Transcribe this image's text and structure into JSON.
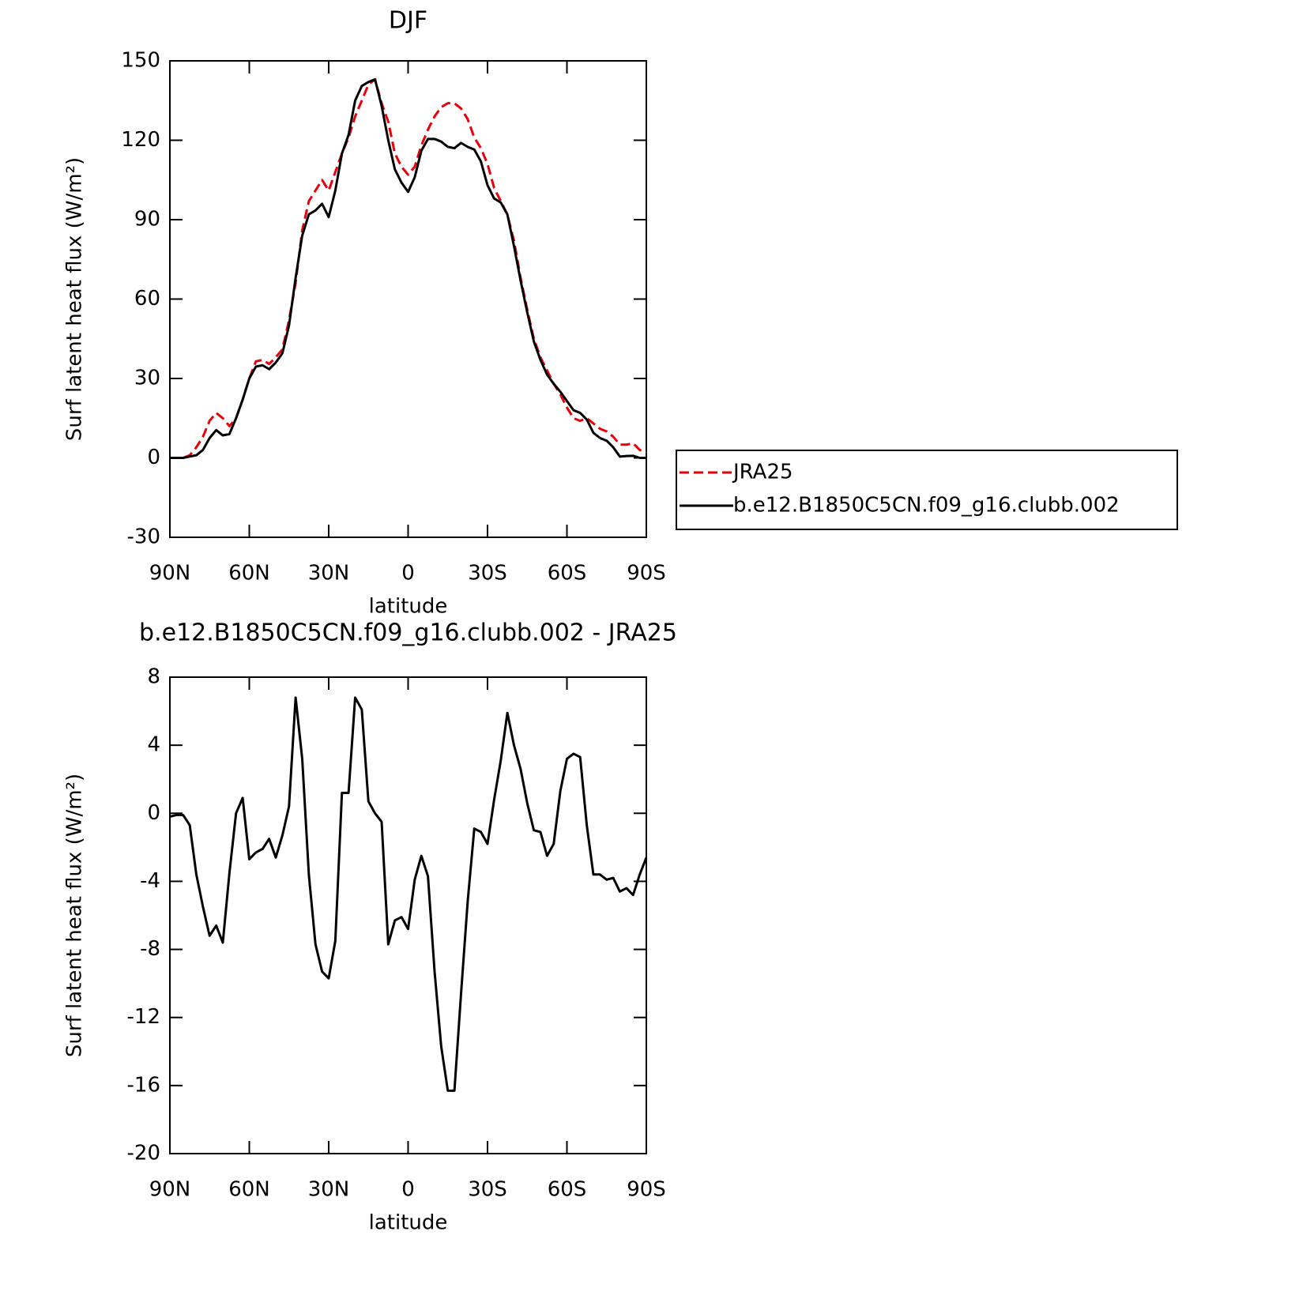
{
  "chart_data": [
    {
      "type": "line",
      "title": "DJF",
      "xlabel": "latitude",
      "ylabel": "Surf latent heat flux (W/m²)",
      "x": [
        90,
        87.5,
        85,
        82.5,
        80,
        77.5,
        75,
        72.5,
        70,
        67.5,
        65,
        62.5,
        60,
        57.5,
        55,
        52.5,
        50,
        47.5,
        45,
        42.5,
        40,
        37.5,
        35,
        32.5,
        30,
        27.5,
        25,
        22.5,
        20,
        17.5,
        15,
        12.5,
        10,
        7.5,
        5,
        2.5,
        0,
        -2.5,
        -5,
        -7.5,
        -10,
        -12.5,
        -15,
        -17.5,
        -20,
        -22.5,
        -25,
        -27.5,
        -30,
        -32.5,
        -35,
        -37.5,
        -40,
        -42.5,
        -45,
        -47.5,
        -50,
        -52.5,
        -55,
        -57.5,
        -60,
        -62.5,
        -65,
        -67.5,
        -70,
        -72.5,
        -75,
        -77.5,
        -80,
        -82.5,
        -85,
        -87.5,
        -90
      ],
      "series": [
        {
          "name": "JRA25",
          "color": "#e8000b",
          "dashed": true,
          "values": [
            0,
            0,
            0,
            1,
            4,
            8,
            14,
            17,
            15,
            12,
            15,
            22,
            30,
            36.5,
            37,
            35.5,
            38,
            41,
            52,
            66,
            86,
            97,
            101,
            105,
            101,
            108,
            115,
            121,
            129,
            135,
            141,
            143,
            134,
            127,
            115,
            110,
            107,
            110,
            118,
            124,
            129,
            132.5,
            134,
            134,
            132,
            128,
            121,
            117,
            111,
            102,
            97,
            92,
            82,
            68,
            56,
            45,
            38,
            33,
            28,
            24,
            19,
            15,
            14,
            15,
            13,
            11,
            10,
            8,
            5,
            5,
            5.5,
            3,
            2
          ]
        },
        {
          "name": "b.e12.B1850C5CN.f09_g16.clubb.002",
          "color": "#000000",
          "dashed": false,
          "values": [
            0,
            0,
            0,
            0.5,
            1,
            3,
            7.5,
            10.5,
            8.5,
            9,
            15,
            22,
            30,
            34.5,
            35,
            33.5,
            36,
            39.5,
            50,
            68,
            84,
            92,
            93.5,
            96,
            91,
            101,
            115,
            122,
            135,
            140.5,
            142,
            143,
            133,
            120,
            109,
            104,
            100.5,
            106,
            116,
            120.5,
            120.5,
            119.5,
            117.5,
            117,
            119,
            117.5,
            116.5,
            112,
            103,
            98,
            96.5,
            92,
            80,
            67,
            55,
            44,
            37,
            31.5,
            28,
            25,
            21.5,
            18,
            17,
            14.5,
            9.5,
            7.5,
            6.5,
            4,
            0.5,
            0.7,
            0.8,
            0,
            0
          ]
        }
      ],
      "xlim": [
        90,
        -90
      ],
      "xticks": [
        {
          "value": 90,
          "label": "90N"
        },
        {
          "value": 60,
          "label": "60N"
        },
        {
          "value": 30,
          "label": "30N"
        },
        0,
        {
          "value": -30,
          "label": "30S"
        },
        {
          "value": -60,
          "label": "60S"
        },
        {
          "value": -90,
          "label": "90S"
        }
      ],
      "ylim": [
        -30,
        150
      ],
      "yticks": [
        -30,
        0,
        30,
        60,
        90,
        120,
        150
      ],
      "legend": "right"
    },
    {
      "type": "line",
      "title": "b.e12.B1850C5CN.f09_g16.clubb.002 - JRA25",
      "xlabel": "latitude",
      "ylabel": "Surf latent heat flux (W/m²)",
      "x": [
        90,
        87.5,
        85,
        82.5,
        80,
        77.5,
        75,
        72.5,
        70,
        67.5,
        65,
        62.5,
        60,
        57.5,
        55,
        52.5,
        50,
        47.5,
        45,
        42.5,
        40,
        37.5,
        35,
        32.5,
        30,
        27.5,
        25,
        22.5,
        20,
        17.5,
        15,
        12.5,
        10,
        7.5,
        5,
        2.5,
        0,
        -2.5,
        -5,
        -7.5,
        -10,
        -12.5,
        -15,
        -17.5,
        -20,
        -22.5,
        -25,
        -27.5,
        -30,
        -32.5,
        -35,
        -37.5,
        -40,
        -42.5,
        -45,
        -47.5,
        -50,
        -52.5,
        -55,
        -57.5,
        -60,
        -62.5,
        -65,
        -67.5,
        -70,
        -72.5,
        -75,
        -77.5,
        -80,
        -82.5,
        -85,
        -87.5,
        -90
      ],
      "series": [
        {
          "color": "#000000",
          "dashed": false,
          "values": [
            -0.2,
            -0.1,
            -0.1,
            -0.7,
            -3.6,
            -5.5,
            -7.2,
            -6.6,
            -7.6,
            -3.5,
            0,
            0.9,
            -2.7,
            -2.3,
            -2.1,
            -1.5,
            -2.6,
            -1.3,
            0.4,
            6.8,
            3.2,
            -3.6,
            -7.7,
            -9.3,
            -9.7,
            -7.5,
            1.2,
            1.2,
            6.8,
            6.1,
            0.7,
            0,
            -0.5,
            -7.7,
            -6.3,
            -6.1,
            -6.8,
            -3.9,
            -2.5,
            -3.7,
            -9.3,
            -13.7,
            -16.3,
            -16.3,
            -10.6,
            -5.2,
            -0.9,
            -1.1,
            -1.8,
            0.8,
            3.1,
            5.9,
            4,
            2.6,
            0.6,
            -1,
            -1.1,
            -2.5,
            -1.8,
            1.3,
            3.2,
            3.5,
            3.3,
            -0.7,
            -3.6,
            -3.6,
            -3.9,
            -3.8,
            -4.6,
            -4.4,
            -4.8,
            -3.6,
            -2.6
          ]
        }
      ],
      "xlim": [
        90,
        -90
      ],
      "xticks": [
        {
          "value": 90,
          "label": "90N"
        },
        {
          "value": 60,
          "label": "60N"
        },
        {
          "value": 30,
          "label": "30N"
        },
        0,
        {
          "value": -30,
          "label": "30S"
        },
        {
          "value": -60,
          "label": "60S"
        },
        {
          "value": -90,
          "label": "90S"
        }
      ],
      "ylim": [
        -20,
        8
      ],
      "yticks": [
        -20,
        -16,
        -12,
        -8,
        -4,
        0,
        4,
        8
      ]
    }
  ]
}
